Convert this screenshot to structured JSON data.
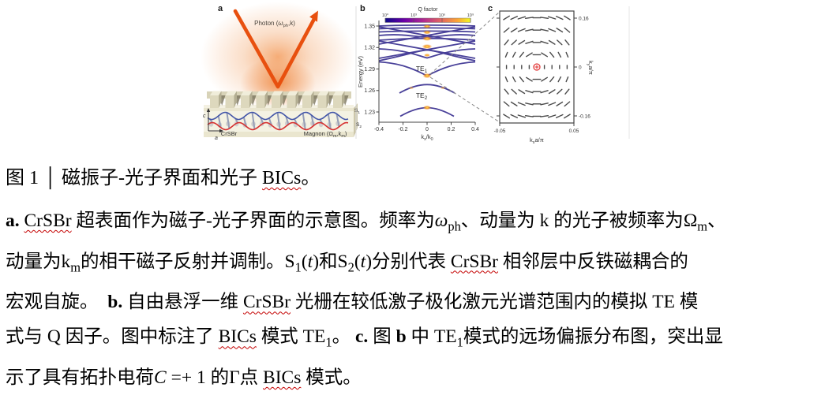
{
  "figure": {
    "panel_a": {
      "label": "a",
      "photon_label_segs": [
        {
          "t": "Photon ("
        },
        {
          "t": "ω",
          "i": true
        },
        {
          "t": "ph",
          "sub": true
        },
        {
          "t": ",k)"
        }
      ],
      "crsbr_label": "CrSBr",
      "magnon_label_segs": [
        {
          "t": "Magnon (Ω"
        },
        {
          "t": "m",
          "sub": true
        },
        {
          "t": ",k"
        },
        {
          "t": "m",
          "sub": true
        },
        {
          "t": ")"
        }
      ],
      "s1_segs": [
        {
          "t": "S"
        },
        {
          "t": "1",
          "sub": true
        }
      ],
      "s2_segs": [
        {
          "t": "S"
        },
        {
          "t": "2",
          "sub": true
        }
      ],
      "axis_c": "c",
      "axis_a": "a"
    },
    "panel_b": {
      "label": "b",
      "colorbar": {
        "title": "Q factor",
        "ticks": [
          "10⁰",
          "10³",
          "10⁶",
          "10⁹"
        ]
      },
      "ylabel": "Energy (eV)",
      "y_ticks": [
        "1.35",
        "1.32",
        "1.29",
        "1.26",
        "1.23"
      ],
      "x_ticks": [
        "-0.4",
        "-0.2",
        "0",
        "0.2",
        "0.4"
      ],
      "xlabel_segs": [
        {
          "t": "k"
        },
        {
          "t": "x",
          "sub": true
        },
        {
          "t": "/k"
        },
        {
          "t": "0",
          "sub": true
        }
      ],
      "te1_segs": [
        {
          "t": "TE"
        },
        {
          "t": "1",
          "sub": true
        }
      ],
      "te2_segs": [
        {
          "t": "TE"
        },
        {
          "t": "2",
          "sub": true
        }
      ]
    },
    "panel_c": {
      "label": "c",
      "y_ticks": [
        "0.16",
        "0",
        "-0.16"
      ],
      "x_ticks": [
        "-0.05",
        "0.05"
      ],
      "xlabel_segs": [
        {
          "t": "k"
        },
        {
          "t": "x",
          "sub": true
        },
        {
          "t": "a/π"
        }
      ],
      "ylabel_segs": [
        {
          "t": "k"
        },
        {
          "t": "y",
          "sub": true
        },
        {
          "t": "a/π"
        }
      ]
    }
  },
  "caption": {
    "title_segs": [
      {
        "t": "图 1 │ 磁振子-光子界面和光子 "
      },
      {
        "t": "BICs",
        "sq": true
      },
      {
        "t": "。"
      }
    ],
    "body_segs": [
      {
        "t": "a.",
        "b": true
      },
      {
        "t": "  "
      },
      {
        "t": "CrSBr",
        "sq": true
      },
      {
        "t": " 超表面作为磁子-光子界面的示意图。频率为"
      },
      {
        "t": "ω",
        "i": true
      },
      {
        "t": "ph",
        "sub": true
      },
      {
        "t": "、动量为 k 的光子被频率为"
      },
      {
        "t": "Ω"
      },
      {
        "t": "m",
        "sub": true
      },
      {
        "t": "、"
      },
      {
        "br": true
      },
      {
        "t": "动量为"
      },
      {
        "t": "k"
      },
      {
        "t": "m",
        "sub": true
      },
      {
        "t": "的相干磁子反射并调制。"
      },
      {
        "t": "S"
      },
      {
        "t": "1",
        "sub": true
      },
      {
        "t": "("
      },
      {
        "t": "t",
        "i": true
      },
      {
        "t": ")和S"
      },
      {
        "t": "2",
        "sub": true
      },
      {
        "t": "("
      },
      {
        "t": "t",
        "i": true
      },
      {
        "t": ")分别代表 "
      },
      {
        "t": "CrSBr",
        "sq": true
      },
      {
        "t": " 相邻层中反铁磁耦合的"
      },
      {
        "br": true
      },
      {
        "t": "宏观自旋。"
      },
      {
        "t": "　"
      },
      {
        "t": "b.",
        "b": true
      },
      {
        "t": "  自由悬浮一维 "
      },
      {
        "t": "CrSBr",
        "sq": true
      },
      {
        "t": " 光栅在较低激子极化激元光谱范围内的模拟 TE 模"
      },
      {
        "br": true
      },
      {
        "t": "式与 Q 因子。图中标注了 "
      },
      {
        "t": "BICs",
        "sq": true
      },
      {
        "t": " 模式 TE"
      },
      {
        "t": "1",
        "sub": true
      },
      {
        "t": "。 "
      },
      {
        "t": "c.",
        "b": true
      },
      {
        "t": " 图 "
      },
      {
        "t": "b",
        "b": true
      },
      {
        "t": " 中 TE"
      },
      {
        "t": "1",
        "sub": true
      },
      {
        "t": "模式的远场偏振分布图，突出显"
      },
      {
        "br": true
      },
      {
        "t": "示了具有拓扑电荷"
      },
      {
        "t": "C",
        "i": true
      },
      {
        "t": " =+ 1 的Γ点 "
      },
      {
        "t": "BICs",
        "sq": true
      },
      {
        "t": " 模式。"
      }
    ]
  },
  "colors": {
    "photon_arrow": "#e8500f",
    "band_line": "#3f3694",
    "hotspot": "#f59122",
    "spin_top_curve": "#4356a8",
    "spin_bottom_curve": "#d63030",
    "topological_marker": "#e23b3b",
    "spellcheck_squiggle": "#c40000",
    "colorbar_gradient": [
      "#0d0887",
      "#6a00a8",
      "#b12a90",
      "#e16462",
      "#fca636",
      "#f0f921"
    ]
  }
}
